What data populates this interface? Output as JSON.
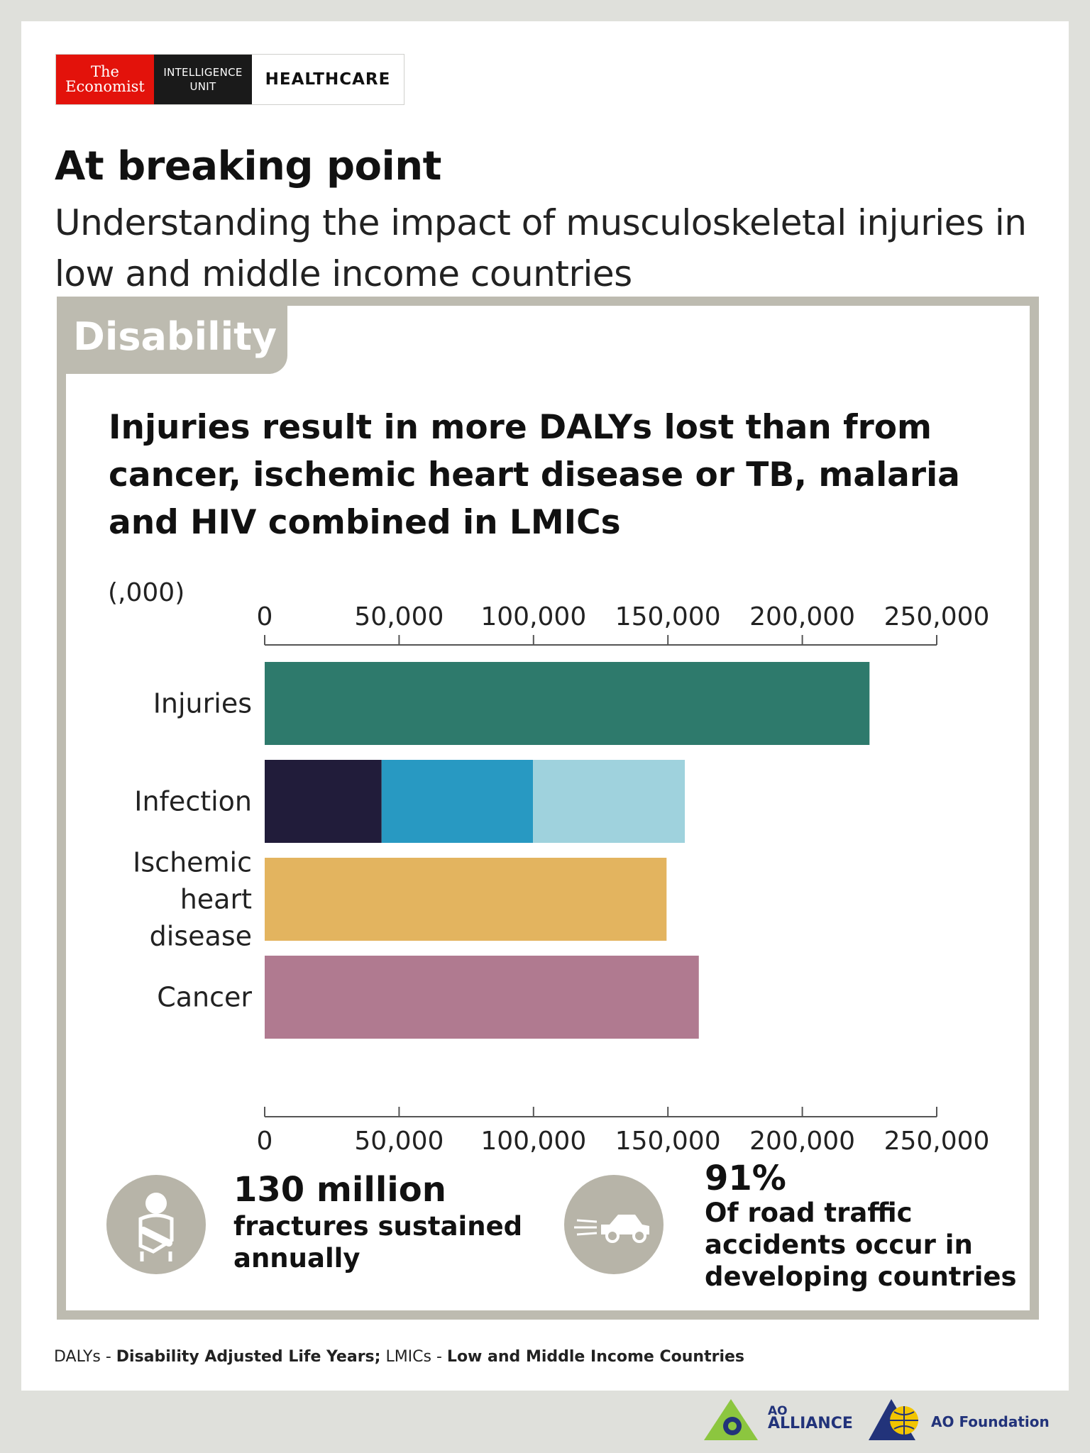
{
  "brand": {
    "economist_line1": "The",
    "economist_line2": "Economist",
    "eiu_line1": "INTELLIGENCE",
    "eiu_line2": "UNIT",
    "section": "HEALTHCARE"
  },
  "headline": "At breaking point",
  "subheadline": "Understanding the impact of musculoskeletal injuries in low and middle income countries",
  "panel": {
    "tab_label": "Disability",
    "chart_title": "Injuries result in more DALYs lost than from cancer, ischemic heart disease or TB, malaria and HIV combined in LMICs"
  },
  "chart_data": {
    "type": "bar",
    "orientation": "horizontal",
    "stacked": true,
    "unit_label": "(,000)",
    "xlim": [
      0,
      250000
    ],
    "ticks": [
      0,
      50000,
      100000,
      150000,
      200000,
      250000
    ],
    "tick_labels": [
      "0",
      "50,000",
      "100,000",
      "150,000",
      "200,000",
      "250,000"
    ],
    "axis_position": "top and bottom",
    "grid": false,
    "legend": "none",
    "categories": [
      "Injuries",
      "Infection",
      "Ischemic heart disease",
      "Cancer"
    ],
    "category_label_lines": [
      [
        "Injuries"
      ],
      [
        "Infection"
      ],
      [
        "Ischemic",
        "heart",
        "disease"
      ],
      [
        "Cancer"
      ]
    ],
    "bars": [
      {
        "category": "Injuries",
        "segments": [
          {
            "value": 225000,
            "color": "#2e7a6c"
          }
        ]
      },
      {
        "category": "Infection",
        "segments": [
          {
            "value": 43500,
            "color": "#211c3a"
          },
          {
            "value": 56300,
            "color": "#2899c2"
          },
          {
            "value": 56500,
            "color": "#9fd2dd"
          }
        ]
      },
      {
        "category": "Ischemic heart disease",
        "segments": [
          {
            "value": 149500,
            "color": "#e3b45f"
          }
        ]
      },
      {
        "category": "Cancer",
        "segments": [
          {
            "value": 161500,
            "color": "#b07a90"
          }
        ]
      }
    ]
  },
  "stats": [
    {
      "big": "130 million",
      "text_lines": [
        "fractures sustained",
        "annually"
      ],
      "icon": "arm-sling-icon"
    },
    {
      "big": "91%",
      "text_lines": [
        "Of road traffic",
        "accidents occur in",
        "developing countries"
      ],
      "icon": "speeding-car-icon"
    }
  ],
  "footnote": {
    "daly_abbr": "DALYs - ",
    "daly_full": "Disability Adjusted Life Years;",
    "lmic_abbr": " LMICs - ",
    "lmic_full": "Low and Middle Income Countries"
  },
  "logos": {
    "ao_alliance_line1": "AO",
    "ao_alliance_line2": "ALLIANCE",
    "ao_foundation": "AO Foundation"
  },
  "colors": {
    "background": "#dfe0db",
    "panel_border": "#bdbbb0",
    "economist_red": "#e3120b",
    "ao_blue": "#22337a",
    "ao_green": "#8cc63f"
  }
}
